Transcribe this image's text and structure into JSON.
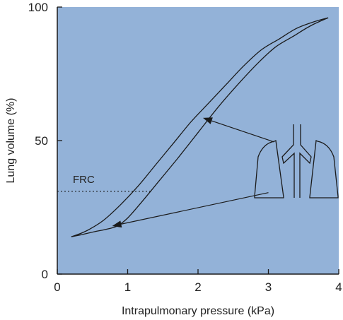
{
  "chart_data": {
    "type": "line",
    "title": "",
    "xlabel": "Intrapulmonary pressure (kPa)",
    "ylabel": "Lung volume (%)",
    "xlim": [
      0,
      4
    ],
    "ylim": [
      0,
      100
    ],
    "xticks": [
      "0",
      "1",
      "2",
      "3",
      "4"
    ],
    "yticks": [
      "0",
      "50",
      "100"
    ],
    "grid": false,
    "background_color": "#93b2d8",
    "line_color": "#1a1a1a",
    "series": [
      {
        "points": [
          [
            0.2,
            14
          ],
          [
            0.35,
            14.8
          ],
          [
            0.55,
            16
          ],
          [
            0.7,
            16.8
          ],
          [
            0.85,
            18
          ],
          [
            1.0,
            21
          ],
          [
            1.2,
            27
          ],
          [
            1.45,
            35
          ],
          [
            1.7,
            43
          ],
          [
            2.0,
            53
          ],
          [
            2.3,
            63
          ],
          [
            2.6,
            72
          ],
          [
            2.85,
            79
          ],
          [
            3.1,
            85
          ],
          [
            3.35,
            89
          ],
          [
            3.6,
            93
          ],
          [
            3.85,
            96
          ]
        ]
      },
      {
        "points": [
          [
            0.2,
            14
          ],
          [
            0.4,
            16
          ],
          [
            0.65,
            20
          ],
          [
            0.9,
            26
          ],
          [
            1.15,
            33
          ],
          [
            1.4,
            41
          ],
          [
            1.65,
            49
          ],
          [
            1.9,
            57
          ],
          [
            2.15,
            64
          ],
          [
            2.4,
            71
          ],
          [
            2.65,
            78
          ],
          [
            2.9,
            84
          ],
          [
            3.15,
            88
          ],
          [
            3.4,
            92
          ],
          [
            3.65,
            94.5
          ],
          [
            3.85,
            96
          ]
        ]
      }
    ],
    "annotations": [
      {
        "text": "FRC",
        "y": 31,
        "x_end": 1.35,
        "style": "dotted"
      }
    ],
    "arrows": [
      {
        "from": [
          3.08,
          49.5
        ],
        "to": [
          2.07,
          58.5
        ]
      },
      {
        "from": [
          3.0,
          30.5
        ],
        "to": [
          0.78,
          18
        ]
      }
    ],
    "inset": "lungs-icon"
  }
}
